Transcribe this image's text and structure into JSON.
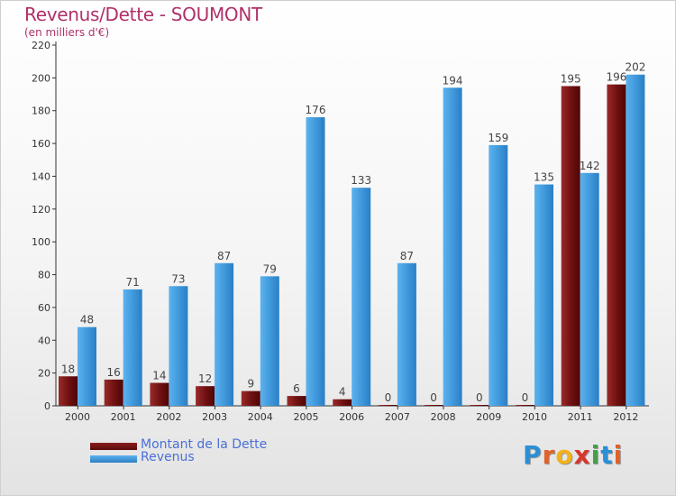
{
  "header": {
    "title": "Revenus/Dette - SOUMONT",
    "subtitle": "(en milliers d'€)"
  },
  "legend": {
    "debt_label": "Montant de la Dette",
    "revenue_label": "Revenus"
  },
  "logo": {
    "text": "Proxiti",
    "letters": [
      "P",
      "r",
      "o",
      "x",
      "i",
      "t",
      "i"
    ],
    "colors": [
      "#2a8fd6",
      "#e0622a",
      "#f2b21c",
      "#d8362b",
      "#43a047",
      "#2a8fd6",
      "#e0622a"
    ]
  },
  "colors": {
    "debt": "#7a1414",
    "revenue": "#4aa3e6",
    "title": "#b0306a",
    "legend_text": "#4a6fd8"
  },
  "chart_data": {
    "type": "bar",
    "title": "Revenus/Dette - SOUMONT",
    "subtitle": "(en milliers d'€)",
    "categories": [
      "2000",
      "2001",
      "2002",
      "2003",
      "2004",
      "2005",
      "2006",
      "2007",
      "2008",
      "2009",
      "2010",
      "2011",
      "2012"
    ],
    "series": [
      {
        "name": "Montant de la Dette",
        "values": [
          18,
          16,
          14,
          12,
          9,
          6,
          4,
          0,
          0,
          0,
          0,
          195,
          196
        ]
      },
      {
        "name": "Revenus",
        "values": [
          48,
          71,
          73,
          87,
          79,
          176,
          133,
          87,
          194,
          159,
          135,
          142,
          202
        ]
      }
    ],
    "ylim": [
      0,
      220
    ],
    "yticks": [
      0,
      20,
      40,
      60,
      80,
      100,
      120,
      140,
      160,
      180,
      200,
      220
    ],
    "grid": false,
    "legend_position": "bottom-left"
  }
}
